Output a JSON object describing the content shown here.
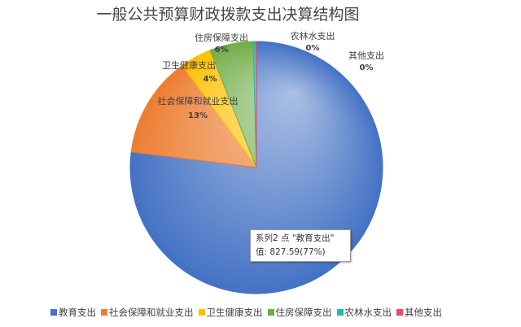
{
  "chart_data": {
    "type": "pie",
    "title": "一般公共预算财政拨款支出决算结构图",
    "categories": [
      "教育支出",
      "社会保障和就业支出",
      "卫生健康支出",
      "住房保障支出",
      "农林水支出",
      "其他支出"
    ],
    "values": [
      827.59,
      140,
      43,
      60,
      4,
      0.3
    ],
    "percent_labels": [
      "77%",
      "13%",
      "4%",
      "6%",
      "0%",
      "0%"
    ],
    "colors": [
      "#4472C4",
      "#ED7D31",
      "#FFC000",
      "#70AD47",
      "#26B5B0",
      "#E84A5F"
    ],
    "legend_position": "bottom",
    "tooltip": {
      "line1": "系列2 点 \"教育支出\"",
      "line2": "值: 827.59(77%)"
    }
  }
}
